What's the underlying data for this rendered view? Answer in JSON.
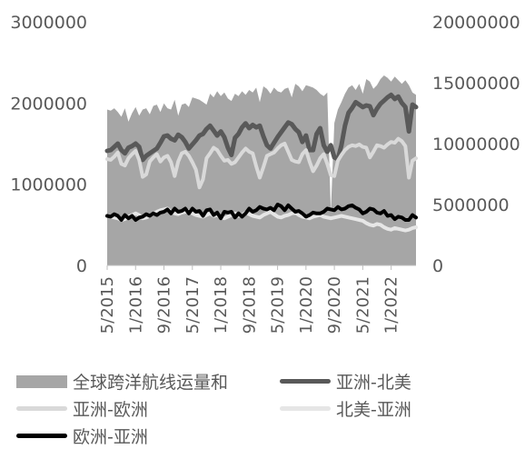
{
  "chart_data": {
    "type": "area+line",
    "title": "",
    "xlabel": "",
    "ylabel_left": "",
    "ylabel_right": "",
    "left_axis": {
      "min": 0,
      "max": 3000000,
      "ticks": [
        "0",
        "1000000",
        "2000000",
        "3000000"
      ]
    },
    "right_axis": {
      "min": 0,
      "max": 20000000,
      "ticks": [
        "0",
        "5000000",
        "10000000",
        "15000000",
        "20000000"
      ]
    },
    "x_tick_labels": [
      "5/2015",
      "1/2016",
      "9/2016",
      "5/2017",
      "1/2018",
      "9/2018",
      "5/2019",
      "1/2020",
      "9/2020",
      "5/2021",
      "1/2022"
    ],
    "x_start": "5/2015",
    "x_end": "4/2022",
    "grid": false,
    "legend_position": "bottom",
    "area_series": {
      "name": "全球跨洋航线运量和",
      "axis": "right",
      "color": "#a6a6a6",
      "values": [
        12800000,
        12700000,
        12900000,
        12600000,
        12200000,
        12900000,
        11800000,
        12500000,
        13000000,
        12300000,
        12800000,
        12900000,
        12400000,
        13100000,
        13200000,
        12600000,
        13300000,
        12900000,
        12800000,
        13600000,
        12300000,
        13200000,
        13300000,
        13000000,
        13800000,
        13700000,
        13600000,
        13400000,
        13200000,
        14100000,
        13800000,
        14300000,
        13900000,
        14200000,
        13700000,
        13500000,
        14100000,
        13900000,
        14300000,
        14000000,
        14400000,
        14200000,
        14600000,
        13400000,
        14700000,
        14500000,
        14100000,
        14600000,
        14300000,
        14200000,
        14500000,
        14600000,
        13800000,
        14900000,
        14700000,
        14300000,
        14800000,
        14700000,
        14600000,
        14400000,
        14100000,
        13900000,
        14200000,
        13600000,
        11700000,
        12800000,
        13400000,
        14100000,
        14600000,
        14800000,
        14400000,
        14900000,
        14100000,
        15300000,
        15100000,
        14500000,
        14800000,
        15300000,
        15600000,
        15400000,
        15100000,
        15500000,
        15200000,
        14900000,
        15200000,
        14800000,
        14200000,
        14000000
      ],
      "dips": [
        {
          "x_index": 63,
          "value": 4300000
        }
      ]
    },
    "series": [
      {
        "name": "亚洲-北美",
        "axis": "left",
        "color": "#595959",
        "width": 5,
        "values": [
          1410000,
          1420000,
          1460000,
          1500000,
          1420000,
          1380000,
          1450000,
          1470000,
          1500000,
          1460000,
          1300000,
          1350000,
          1380000,
          1410000,
          1440000,
          1510000,
          1590000,
          1600000,
          1560000,
          1540000,
          1610000,
          1580000,
          1520000,
          1440000,
          1490000,
          1540000,
          1600000,
          1620000,
          1680000,
          1720000,
          1660000,
          1600000,
          1650000,
          1580000,
          1450000,
          1360000,
          1570000,
          1620000,
          1700000,
          1750000,
          1690000,
          1730000,
          1700000,
          1720000,
          1590000,
          1480000,
          1440000,
          1510000,
          1580000,
          1640000,
          1700000,
          1760000,
          1740000,
          1680000,
          1640000,
          1520000,
          1600000,
          1420000,
          1420000,
          1620000,
          1690000,
          1480000,
          1400000,
          1480000,
          1330000,
          1310000,
          1480000,
          1720000,
          1880000,
          1940000,
          2010000,
          1980000,
          1950000,
          1970000,
          1960000,
          1850000,
          1930000,
          1990000,
          2030000,
          2070000,
          2100000,
          2050000,
          2080000,
          2000000,
          1950000,
          1650000,
          1980000,
          1950000
        ]
      },
      {
        "name": "亚洲-欧洲",
        "axis": "left",
        "color": "#d9d9d9",
        "width": 4,
        "values": [
          1310000,
          1300000,
          1340000,
          1390000,
          1250000,
          1230000,
          1320000,
          1370000,
          1410000,
          1300000,
          1090000,
          1120000,
          1280000,
          1330000,
          1370000,
          1280000,
          1330000,
          1350000,
          1270000,
          1100000,
          1280000,
          1380000,
          1400000,
          1350000,
          1270000,
          1180000,
          960000,
          1060000,
          1320000,
          1380000,
          1450000,
          1420000,
          1350000,
          1290000,
          1300000,
          1250000,
          1270000,
          1330000,
          1390000,
          1440000,
          1400000,
          1380000,
          1220000,
          1080000,
          1210000,
          1350000,
          1370000,
          1390000,
          1440000,
          1480000,
          1500000,
          1400000,
          1300000,
          1280000,
          1270000,
          1370000,
          1420000,
          1280000,
          1160000,
          1230000,
          1320000,
          1370000,
          1250000,
          1110000,
          1100000,
          1290000,
          1360000,
          1420000,
          1460000,
          1480000,
          1470000,
          1490000,
          1460000,
          1450000,
          1330000,
          1400000,
          1480000,
          1470000,
          1450000,
          1490000,
          1520000,
          1510000,
          1560000,
          1530000,
          1470000,
          1080000,
          1290000,
          1320000
        ]
      },
      {
        "name": "北美-亚洲",
        "axis": "left",
        "color": "#e6e6e6",
        "width": 4,
        "values": [
          610000,
          600000,
          590000,
          580000,
          560000,
          570000,
          600000,
          620000,
          640000,
          620000,
          580000,
          590000,
          610000,
          630000,
          660000,
          680000,
          690000,
          700000,
          660000,
          640000,
          630000,
          650000,
          660000,
          670000,
          640000,
          620000,
          610000,
          600000,
          620000,
          640000,
          610000,
          620000,
          590000,
          580000,
          600000,
          620000,
          640000,
          610000,
          620000,
          650000,
          630000,
          610000,
          600000,
          590000,
          620000,
          640000,
          660000,
          630000,
          600000,
          590000,
          610000,
          620000,
          640000,
          650000,
          620000,
          600000,
          590000,
          580000,
          600000,
          610000,
          620000,
          600000,
          590000,
          580000,
          590000,
          600000,
          610000,
          600000,
          590000,
          580000,
          570000,
          560000,
          550000,
          520000,
          500000,
          490000,
          510000,
          500000,
          470000,
          450000,
          440000,
          460000,
          450000,
          440000,
          430000,
          440000,
          460000,
          470000
        ]
      },
      {
        "name": "欧洲-亚洲",
        "axis": "left",
        "color": "#000000",
        "width": 4,
        "values": [
          610000,
          600000,
          630000,
          610000,
          560000,
          620000,
          580000,
          610000,
          560000,
          590000,
          600000,
          630000,
          610000,
          640000,
          620000,
          650000,
          660000,
          690000,
          640000,
          700000,
          660000,
          670000,
          700000,
          640000,
          700000,
          660000,
          670000,
          610000,
          680000,
          690000,
          620000,
          650000,
          580000,
          660000,
          650000,
          660000,
          590000,
          640000,
          600000,
          640000,
          700000,
          660000,
          680000,
          720000,
          700000,
          690000,
          710000,
          680000,
          750000,
          730000,
          680000,
          740000,
          700000,
          660000,
          670000,
          640000,
          600000,
          620000,
          650000,
          640000,
          640000,
          660000,
          700000,
          690000,
          680000,
          720000,
          690000,
          700000,
          730000,
          740000,
          710000,
          690000,
          640000,
          660000,
          700000,
          690000,
          650000,
          640000,
          670000,
          610000,
          620000,
          570000,
          600000,
          590000,
          560000,
          560000,
          620000,
          590000
        ]
      }
    ]
  },
  "legend": [
    {
      "label": "全球跨洋航线运量和",
      "kind": "area",
      "color": "#a6a6a6"
    },
    {
      "label": "亚洲-北美",
      "kind": "line",
      "color": "#595959"
    },
    {
      "label": "亚洲-欧洲",
      "kind": "line",
      "color": "#d9d9d9"
    },
    {
      "label": "北美-亚洲",
      "kind": "line",
      "color": "#e6e6e6"
    },
    {
      "label": "欧洲-亚洲",
      "kind": "line",
      "color": "#000000"
    }
  ]
}
